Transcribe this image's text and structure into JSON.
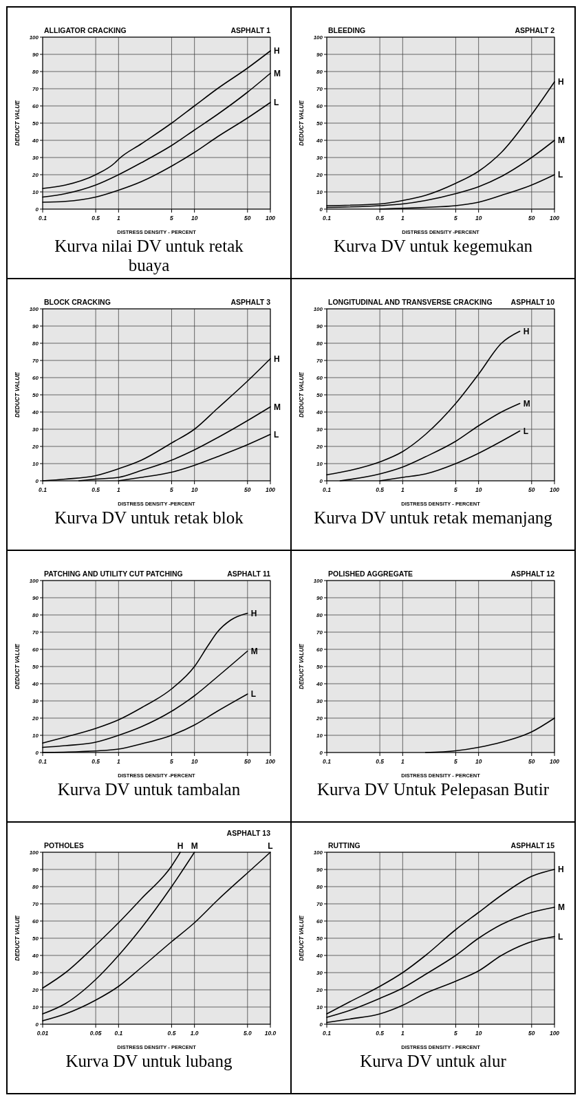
{
  "chart_data": [
    {
      "type": "line",
      "title": "ALLIGATOR CRACKING",
      "subtitle": "ASPHALT 1",
      "xlabel": "DISTRESS DENSITY - PERCENT",
      "ylabel": "DEDUCT VALUE",
      "annotations": [
        "Kurva nilai DV untuk retak buaya"
      ],
      "log": "x",
      "grid": true,
      "xlim": [
        0.1,
        100
      ],
      "ylim": [
        0,
        100
      ],
      "xticks": [
        0.1,
        0.5,
        1,
        5,
        10,
        50,
        100
      ],
      "yticks": [
        0,
        10,
        20,
        30,
        40,
        50,
        60,
        70,
        80,
        90,
        100
      ],
      "series": [
        {
          "name": "H",
          "color": "#000000",
          "x": [
            0.1,
            0.2,
            0.5,
            0.9,
            1,
            2,
            5,
            10,
            20,
            50,
            100
          ],
          "values": [
            12,
            14,
            20,
            27,
            29,
            38,
            50,
            60,
            70,
            82,
            92
          ]
        },
        {
          "name": "M",
          "color": "#000000",
          "x": [
            0.1,
            0.2,
            0.5,
            1,
            2,
            5,
            10,
            20,
            50,
            100
          ],
          "values": [
            7,
            9,
            14,
            20,
            27,
            37,
            46,
            55,
            68,
            79
          ]
        },
        {
          "name": "L",
          "color": "#000000",
          "x": [
            0.1,
            0.2,
            0.5,
            1,
            2,
            5,
            10,
            20,
            50,
            100
          ],
          "values": [
            4,
            4.5,
            7,
            11,
            16,
            25,
            33,
            42,
            53,
            62
          ]
        }
      ]
    },
    {
      "type": "line",
      "title": "BLEEDING",
      "subtitle": "ASPHALT 2",
      "xlabel": "DISTRESS DENSITY -PERCENT",
      "ylabel": "DEDUCT VALUE",
      "annotations": [
        "Kurva DV untuk kegemukan"
      ],
      "log": "x",
      "grid": true,
      "xlim": [
        0.1,
        100
      ],
      "ylim": [
        0,
        100
      ],
      "xticks": [
        0.1,
        0.5,
        1,
        5,
        10,
        50,
        100
      ],
      "yticks": [
        0,
        10,
        20,
        30,
        40,
        50,
        60,
        70,
        80,
        90,
        100
      ],
      "series": [
        {
          "name": "H",
          "color": "#000000",
          "x": [
            0.1,
            0.5,
            1,
            2,
            5,
            10,
            20,
            50,
            100
          ],
          "values": [
            2,
            3,
            5,
            8,
            15,
            22,
            33,
            55,
            74
          ]
        },
        {
          "name": "M",
          "color": "#000000",
          "x": [
            0.1,
            0.5,
            1,
            2,
            5,
            10,
            20,
            50,
            100
          ],
          "values": [
            1,
            2,
            3,
            5,
            9,
            13,
            19,
            30,
            40
          ]
        },
        {
          "name": "L",
          "color": "#000000",
          "x": [
            0.5,
            1,
            2,
            5,
            10,
            20,
            50,
            100
          ],
          "values": [
            0,
            0.5,
            1,
            2,
            4,
            8,
            14,
            20
          ]
        }
      ]
    },
    {
      "type": "line",
      "title": "BLOCK CRACKING",
      "subtitle": "ASPHALT 3",
      "xlabel": "DISTRESS DENSITY -PERCENT",
      "ylabel": "DEDUCT VALUE",
      "annotations": [
        "Kurva DV untuk retak blok"
      ],
      "log": "x",
      "grid": true,
      "xlim": [
        0.1,
        100
      ],
      "ylim": [
        0,
        100
      ],
      "xticks": [
        0.1,
        0.5,
        1,
        5,
        10,
        50,
        100
      ],
      "yticks": [
        0,
        10,
        20,
        30,
        40,
        50,
        60,
        70,
        80,
        90,
        100
      ],
      "series": [
        {
          "name": "H",
          "color": "#000000",
          "x": [
            0.1,
            0.2,
            0.5,
            1,
            2,
            5,
            10,
            20,
            50,
            100
          ],
          "values": [
            0,
            1,
            3,
            7,
            12,
            22,
            30,
            42,
            58,
            71
          ]
        },
        {
          "name": "M",
          "color": "#000000",
          "x": [
            0.3,
            0.5,
            1,
            2,
            5,
            10,
            20,
            50,
            100
          ],
          "values": [
            0,
            1,
            2,
            6,
            12,
            18,
            25,
            35,
            43
          ]
        },
        {
          "name": "L",
          "color": "#000000",
          "x": [
            1,
            2,
            5,
            10,
            20,
            50,
            100
          ],
          "values": [
            0,
            2,
            5,
            9,
            14,
            21,
            27
          ]
        }
      ]
    },
    {
      "type": "line",
      "title": "LONGITUDINAL AND TRANSVERSE CRACKING",
      "subtitle": "ASPHALT 10",
      "xlabel": "DISTRESS DENSITY - PERCENT",
      "ylabel": "DEDUCT VALUE",
      "annotations": [
        "Kurva DV untuk retak memanjang"
      ],
      "log": "x",
      "grid": true,
      "xlim": [
        0.1,
        100
      ],
      "ylim": [
        0,
        100
      ],
      "xticks": [
        0.1,
        0.5,
        1,
        5,
        10,
        50,
        100
      ],
      "yticks": [
        0,
        10,
        20,
        30,
        40,
        50,
        60,
        70,
        80,
        90,
        100
      ],
      "series": [
        {
          "name": "H",
          "color": "#000000",
          "x": [
            0.1,
            0.2,
            0.5,
            1,
            2,
            5,
            10,
            20,
            35
          ],
          "values": [
            3.5,
            6,
            11,
            17,
            27,
            45,
            62,
            80,
            87
          ]
        },
        {
          "name": "M",
          "color": "#000000",
          "x": [
            0.15,
            0.5,
            1,
            2,
            5,
            10,
            20,
            35
          ],
          "values": [
            0,
            4,
            8,
            14,
            23,
            32,
            40,
            45
          ]
        },
        {
          "name": "L",
          "color": "#000000",
          "x": [
            0.5,
            1,
            2,
            5,
            10,
            20,
            35
          ],
          "values": [
            0,
            2,
            4,
            10,
            16,
            23,
            29
          ]
        }
      ]
    },
    {
      "type": "line",
      "title": "PATCHING AND UTILITY CUT PATCHING",
      "subtitle": "ASPHALT 11",
      "xlabel": "DISTRESS DENSITY -PERCENT",
      "ylabel": "DEDUCT VALUE",
      "annotations": [
        "Kurva DV untuk tambalan"
      ],
      "log": "x",
      "grid": true,
      "xlim": [
        0.1,
        100
      ],
      "ylim": [
        0,
        100
      ],
      "xticks": [
        0.1,
        0.5,
        1,
        5,
        10,
        50,
        100
      ],
      "yticks": [
        0,
        10,
        20,
        30,
        40,
        50,
        60,
        70,
        80,
        90,
        100
      ],
      "series": [
        {
          "name": "H",
          "color": "#000000",
          "x": [
            0.1,
            0.2,
            0.5,
            1,
            2,
            5,
            10,
            15,
            20,
            30,
            50
          ],
          "values": [
            5.5,
            9,
            14,
            19,
            26,
            37,
            50,
            62,
            70,
            77,
            81
          ]
        },
        {
          "name": "M",
          "color": "#000000",
          "x": [
            0.1,
            0.2,
            0.5,
            1,
            2,
            5,
            10,
            20,
            50
          ],
          "values": [
            3,
            4,
            6,
            10,
            15,
            24,
            33,
            44,
            59
          ]
        },
        {
          "name": "L",
          "color": "#000000",
          "x": [
            0.1,
            0.3,
            1,
            2,
            5,
            10,
            20,
            50
          ],
          "values": [
            0,
            0.5,
            2,
            5,
            10,
            16,
            24,
            34
          ]
        }
      ]
    },
    {
      "type": "line",
      "title": "POLISHED AGGREGATE",
      "subtitle": "ASPHALT 12",
      "xlabel": "DISTRESS DENSITY - PERCENT",
      "ylabel": "DEDUCT VALUE",
      "annotations": [
        "Kurva DV Untuk Pelepasan Butir"
      ],
      "log": "x",
      "grid": true,
      "xlim": [
        0.1,
        100
      ],
      "ylim": [
        0,
        100
      ],
      "xticks": [
        0.1,
        0.5,
        1,
        5,
        10,
        50,
        100
      ],
      "yticks": [
        0,
        10,
        20,
        30,
        40,
        50,
        60,
        70,
        80,
        90,
        100
      ],
      "series": [
        {
          "color": "#000000",
          "x": [
            2,
            5,
            10,
            20,
            50,
            100
          ],
          "values": [
            0,
            1,
            3,
            6,
            12,
            20
          ]
        }
      ]
    },
    {
      "type": "line",
      "title": "POTHOLES",
      "subtitle": "ASPHALT 13",
      "xlabel": "DISTRESS DENSITY - PERCENT",
      "ylabel": "DEDUCT VALUE",
      "annotations": [
        "Kurva DV untuk lubang"
      ],
      "log": "x",
      "grid": true,
      "xlim": [
        0.01,
        10
      ],
      "ylim": [
        0,
        100
      ],
      "xticks": [
        0.01,
        0.05,
        0.1,
        0.5,
        {
          "value": 1,
          "label": "1.0"
        },
        {
          "value": 5,
          "label": "5.0"
        },
        {
          "value": 10,
          "label": "10.0"
        }
      ],
      "yticks": [
        0,
        10,
        20,
        30,
        40,
        50,
        60,
        70,
        80,
        90,
        100
      ],
      "series": [
        {
          "name": "H",
          "color": "#000000",
          "x": [
            0.01,
            0.02,
            0.05,
            0.1,
            0.2,
            0.5,
            0.65
          ],
          "values": [
            21,
            30,
            46,
            59,
            73,
            92,
            100
          ]
        },
        {
          "name": "M",
          "color": "#000000",
          "x": [
            0.01,
            0.02,
            0.05,
            0.1,
            0.2,
            0.5,
            1
          ],
          "values": [
            6,
            12,
            26,
            40,
            56,
            80,
            100
          ]
        },
        {
          "name": "L",
          "color": "#000000",
          "x": [
            0.01,
            0.02,
            0.05,
            0.1,
            0.2,
            0.5,
            1,
            2,
            5,
            10
          ],
          "values": [
            2,
            6,
            14,
            22,
            33,
            48,
            59,
            72,
            88,
            100
          ]
        }
      ]
    },
    {
      "type": "line",
      "title": "RUTTING",
      "subtitle": "ASPHALT 15",
      "xlabel": "DISTRESS DENSITY - PERCENT",
      "ylabel": "DEDUCT VALUE",
      "annotations": [
        "Kurva DV untuk alur"
      ],
      "log": "x",
      "grid": true,
      "xlim": [
        0.1,
        100
      ],
      "ylim": [
        0,
        100
      ],
      "xticks": [
        0.1,
        0.5,
        1,
        5,
        10,
        50,
        100
      ],
      "yticks": [
        0,
        10,
        20,
        30,
        40,
        50,
        60,
        70,
        80,
        90,
        100
      ],
      "series": [
        {
          "name": "H",
          "color": "#000000",
          "x": [
            0.1,
            0.2,
            0.5,
            1,
            2,
            5,
            10,
            20,
            50,
            100
          ],
          "values": [
            6,
            13,
            22,
            30,
            40,
            55,
            65,
            75,
            86,
            90
          ]
        },
        {
          "name": "M",
          "color": "#000000",
          "x": [
            0.1,
            0.2,
            0.5,
            1,
            2,
            5,
            10,
            20,
            50,
            100
          ],
          "values": [
            4,
            8,
            15,
            21,
            29,
            40,
            50,
            58,
            65,
            68
          ]
        },
        {
          "name": "L",
          "color": "#000000",
          "x": [
            0.1,
            0.2,
            0.5,
            1,
            2,
            5,
            10,
            20,
            50,
            100
          ],
          "values": [
            1,
            3,
            6,
            11,
            18,
            25,
            31,
            40,
            48,
            51
          ]
        }
      ]
    }
  ]
}
